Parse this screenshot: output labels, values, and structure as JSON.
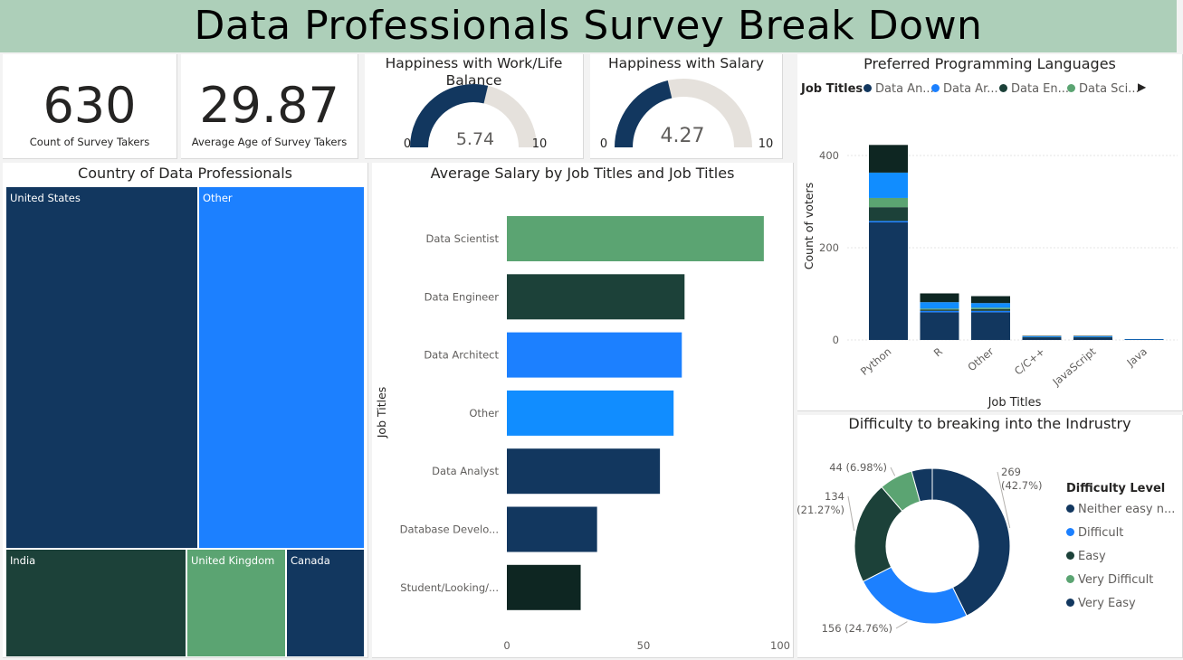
{
  "banner_title": "Data Professionals Survey Break Down",
  "kpi": [
    {
      "value": "630",
      "label": "Count of Survey Takers"
    },
    {
      "value": "29.87",
      "label": "Average Age of Survey Takers"
    }
  ],
  "gauges": {
    "work_life": {
      "title": "Happiness with Work/Life Balance",
      "value": 5.74,
      "value_label": "5.74",
      "min": "0",
      "max": "10"
    },
    "salary": {
      "title": "Happiness with Salary",
      "value": 4.27,
      "value_label": "4.27",
      "min": "0",
      "max": "10"
    }
  },
  "colors": {
    "navy": "#12375f",
    "blue": "#1c80ff",
    "bright_blue": "#118dff",
    "dark_green": "#1c4139",
    "green": "#5ba472",
    "darkest": "#0e2622",
    "gauge_track": "#e5e1dc",
    "banner": "#adcfb9"
  },
  "chart_data": [
    {
      "type": "treemap",
      "title": "Country of Data Professionals",
      "categories": [
        "United States",
        "Other",
        "India",
        "United Kingdom",
        "Canada"
      ],
      "colors": [
        "#12375f",
        "#1c80ff",
        "#1c4139",
        "#5ba472",
        "#12375f"
      ]
    },
    {
      "type": "bar",
      "orientation": "horizontal",
      "title": "Average Salary by Job Titles and Job Titles",
      "ylabel": "Job Titles",
      "categories": [
        "Data Scientist",
        "Data Engineer",
        "Data Architect",
        "Other",
        "Data Analyst",
        "Database Develo...",
        "Student/Looking/..."
      ],
      "values": [
        94,
        65,
        64,
        61,
        56,
        33,
        27
      ],
      "colors": [
        "#5ba472",
        "#1c4139",
        "#1c80ff",
        "#118dff",
        "#12375f",
        "#12375f",
        "#0e2622"
      ],
      "xlim": [
        0,
        100
      ],
      "xticks": [
        "0",
        "50",
        "100"
      ]
    },
    {
      "type": "bar",
      "stacked": true,
      "title": "Preferred Programming Languages",
      "xlabel": "Job Titles",
      "ylabel": "Count of voters",
      "legend_title": "Job Titles",
      "categories": [
        "Python",
        "R",
        "Other",
        "C/C++",
        "JavaScript",
        "Java"
      ],
      "series": [
        {
          "name": "Data An...",
          "color": "#12375f",
          "values": [
            255,
            60,
            60,
            5,
            5,
            1
          ]
        },
        {
          "name": "Data Ar...",
          "color": "#1c80ff",
          "values": [
            3,
            3,
            3,
            0,
            0,
            0
          ]
        },
        {
          "name": "Data En...",
          "color": "#1c4139",
          "values": [
            30,
            3,
            4,
            1,
            1,
            0
          ]
        },
        {
          "name": "Data Sci...",
          "color": "#5ba472",
          "values": [
            20,
            2,
            3,
            0,
            0,
            0
          ]
        },
        {
          "name": "",
          "color": "#118dff",
          "values": [
            55,
            14,
            10,
            2,
            2,
            1
          ]
        },
        {
          "name": "",
          "color": "#0e2622",
          "values": [
            60,
            19,
            15,
            1,
            1,
            0
          ]
        }
      ],
      "ylim": [
        0,
        450
      ],
      "yticks": [
        "0",
        "200",
        "400"
      ]
    },
    {
      "type": "pie",
      "donut": true,
      "title": "Difficulty to breaking into the Indrustry",
      "legend_title": "Difficulty Level",
      "categories": [
        "Neither easy n...",
        "Difficult",
        "Easy",
        "Very Difficult",
        "Very Easy"
      ],
      "values": [
        269,
        156,
        134,
        44,
        27
      ],
      "colors": [
        "#12375f",
        "#1c80ff",
        "#1c4139",
        "#5ba472",
        "#12375f"
      ],
      "data_labels": [
        {
          "count": "269",
          "pct": "(42.7%)"
        },
        {
          "count": "156 (24.76%)"
        },
        {
          "count": "134",
          "pct": "(21.27%)"
        },
        {
          "count": "44 (6.98%)"
        }
      ]
    }
  ]
}
